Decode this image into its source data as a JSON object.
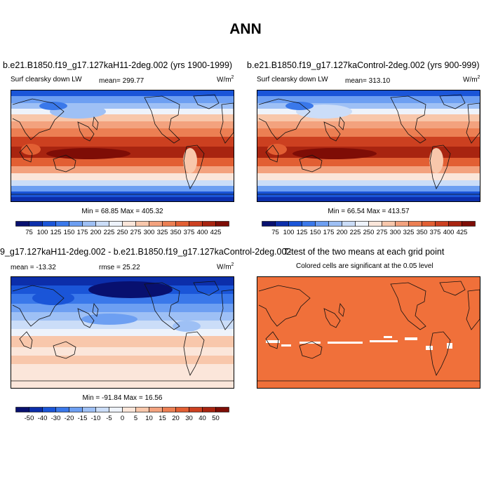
{
  "figure": {
    "title": "ANN"
  },
  "panels": [
    {
      "title": "b.e21.B1850.f19_g17.127kaH11-2deg.002 (yrs 1900-1999)",
      "variable": "Surf clearsky down LW",
      "mean": "mean= 299.77",
      "units_base": "W/m",
      "units_exp": "2",
      "minmax": "Min =  68.85 Max = 405.32"
    },
    {
      "title": "b.e21.B1850.f19_g17.127kaControl-2deg.002 (yrs 900-999)",
      "variable": "Surf clearsky down LW",
      "mean": "mean= 313.10",
      "units_base": "W/m",
      "units_exp": "2",
      "minmax": "Min =  66.54 Max = 413.57"
    },
    {
      "title": "9_g17.127kaH11-2deg.002 - b.e21.B1850.f19_g17.127kaControl-2deg.002",
      "mean": "mean = -13.32",
      "rmse": "rmse =  25.22",
      "units_base": "W/m",
      "units_exp": "2",
      "minmax": "Min = -91.84 Max =  16.56"
    },
    {
      "title": "T-test of the two means at each grid point",
      "subtitle": "Colored cells are significant at the 0.05 level"
    }
  ],
  "colorbars": {
    "absolute": {
      "labels": [
        "75",
        "100",
        "125",
        "150",
        "175",
        "200",
        "225",
        "250",
        "275",
        "300",
        "325",
        "350",
        "375",
        "400",
        "425"
      ],
      "colors": [
        "#08106f",
        "#0c2eaa",
        "#1a55d8",
        "#3a78ea",
        "#6d9ff2",
        "#9ec0f5",
        "#cbddf8",
        "#eef3fb",
        "#fbe6da",
        "#f8c7ab",
        "#f3a27e",
        "#ec7f53",
        "#e25f33",
        "#cc4020",
        "#a82410",
        "#7e0d06"
      ]
    },
    "difference": {
      "labels": [
        "-50",
        "-40",
        "-30",
        "-20",
        "-15",
        "-10",
        "-5",
        "0",
        "5",
        "10",
        "15",
        "20",
        "30",
        "40",
        "50"
      ],
      "colors": [
        "#08106f",
        "#0c2eaa",
        "#1a55d8",
        "#3a78ea",
        "#6d9ff2",
        "#9ec0f5",
        "#cbddf8",
        "#eef3fb",
        "#fbe6da",
        "#f8c7ab",
        "#f3a27e",
        "#ec7f53",
        "#e25f33",
        "#cc4020",
        "#a82410",
        "#7e0d06"
      ]
    }
  },
  "colors": {
    "ttest_fill": "#f0703a",
    "ttest_nonsignificant": "#ffffff"
  }
}
